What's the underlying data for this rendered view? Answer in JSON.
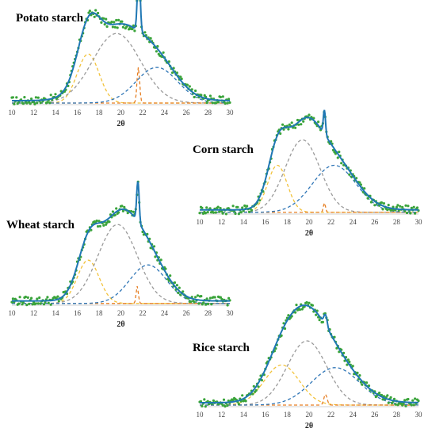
{
  "chart_data": [
    {
      "type": "line",
      "title": "Potato starch",
      "xlabel": "2θ",
      "xlim": [
        10,
        30
      ],
      "x_ticks": [
        10,
        12,
        14,
        16,
        18,
        20,
        22,
        24,
        26,
        28,
        30
      ],
      "grid": false,
      "series": [
        {
          "role": "data",
          "color": "#3aa43a",
          "style": "points"
        },
        {
          "role": "fit",
          "color": "#1f77b4",
          "style": "solid"
        },
        {
          "role": "peak",
          "color": "#f2c23a",
          "style": "dashed",
          "center": 17.0,
          "width": 1.0,
          "height": 0.55
        },
        {
          "role": "peak",
          "color": "#9a9a9a",
          "style": "dashed",
          "center": 19.6,
          "width": 2.2,
          "height": 0.78
        },
        {
          "role": "peak",
          "color": "#e67e22",
          "style": "dashed",
          "center": 21.6,
          "width": 0.12,
          "height": 0.4
        },
        {
          "role": "peak",
          "color": "#2e75b6",
          "style": "dashed",
          "center": 23.3,
          "width": 1.9,
          "height": 0.4
        }
      ],
      "peak_spike": {
        "center": 21.7,
        "width": 0.12,
        "height": 0.3
      }
    },
    {
      "type": "line",
      "title": "Corn starch",
      "xlabel": "2θ",
      "xlim": [
        10,
        30
      ],
      "x_ticks": [
        10,
        12,
        14,
        16,
        18,
        20,
        22,
        24,
        26,
        28,
        30
      ],
      "grid": false,
      "series": [
        {
          "role": "data",
          "color": "#3aa43a",
          "style": "points"
        },
        {
          "role": "fit",
          "color": "#1f77b4",
          "style": "solid"
        },
        {
          "role": "peak",
          "color": "#f2c23a",
          "style": "dashed",
          "center": 17.1,
          "width": 0.9,
          "height": 0.5
        },
        {
          "role": "peak",
          "color": "#9a9a9a",
          "style": "dashed",
          "center": 19.4,
          "width": 1.6,
          "height": 0.77
        },
        {
          "role": "peak",
          "color": "#e67e22",
          "style": "dashed",
          "center": 21.4,
          "width": 0.1,
          "height": 0.1
        },
        {
          "role": "peak",
          "color": "#2e75b6",
          "style": "dashed",
          "center": 22.3,
          "width": 2.0,
          "height": 0.5
        }
      ],
      "peak_spike": {
        "center": 21.4,
        "width": 0.1,
        "height": 0.14
      }
    },
    {
      "type": "line",
      "title": "Wheat starch",
      "xlabel": "2θ",
      "xlim": [
        10,
        30
      ],
      "x_ticks": [
        10,
        12,
        14,
        16,
        18,
        20,
        22,
        24,
        26,
        28,
        30
      ],
      "grid": false,
      "series": [
        {
          "role": "data",
          "color": "#3aa43a",
          "style": "points"
        },
        {
          "role": "fit",
          "color": "#1f77b4",
          "style": "solid"
        },
        {
          "role": "peak",
          "color": "#f2c23a",
          "style": "dashed",
          "center": 17.0,
          "width": 1.0,
          "height": 0.45
        },
        {
          "role": "peak",
          "color": "#9a9a9a",
          "style": "dashed",
          "center": 19.7,
          "width": 1.8,
          "height": 0.82
        },
        {
          "role": "peak",
          "color": "#e67e22",
          "style": "dashed",
          "center": 21.5,
          "width": 0.1,
          "height": 0.18
        },
        {
          "role": "peak",
          "color": "#2e75b6",
          "style": "dashed",
          "center": 22.5,
          "width": 1.7,
          "height": 0.4
        }
      ],
      "peak_spike": {
        "center": 21.6,
        "width": 0.1,
        "height": 0.26
      }
    },
    {
      "type": "line",
      "title": "Rice starch",
      "xlabel": "2θ",
      "xlim": [
        10,
        30
      ],
      "x_ticks": [
        10,
        12,
        14,
        16,
        18,
        20,
        22,
        24,
        26,
        28,
        30
      ],
      "grid": false,
      "series": [
        {
          "role": "data",
          "color": "#3aa43a",
          "style": "points"
        },
        {
          "role": "fit",
          "color": "#1f77b4",
          "style": "solid"
        },
        {
          "role": "peak",
          "color": "#f2c23a",
          "style": "dashed",
          "center": 17.5,
          "width": 1.6,
          "height": 0.45
        },
        {
          "role": "peak",
          "color": "#9a9a9a",
          "style": "dashed",
          "center": 19.8,
          "width": 1.8,
          "height": 0.72
        },
        {
          "role": "peak",
          "color": "#e67e22",
          "style": "dashed",
          "center": 21.5,
          "width": 0.15,
          "height": 0.12
        },
        {
          "role": "peak",
          "color": "#2e75b6",
          "style": "dashed",
          "center": 22.4,
          "width": 2.2,
          "height": 0.42
        }
      ],
      "peak_spike": {
        "center": 21.5,
        "width": 0.1,
        "height": 0.0
      }
    }
  ]
}
